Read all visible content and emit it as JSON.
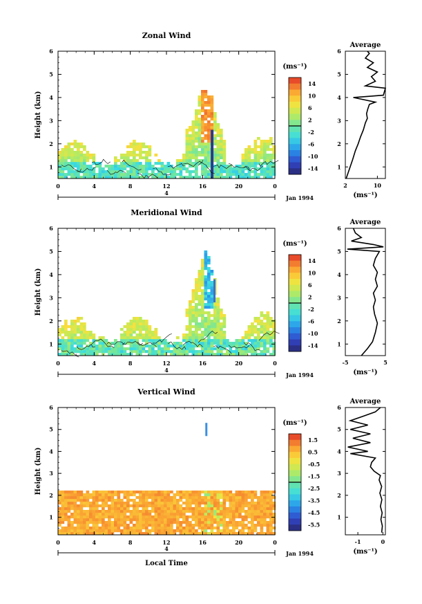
{
  "chart_data": [
    {
      "type": "heatmap",
      "title": "Zonal Wind",
      "ylabel": "Height (km)",
      "ylim": [
        0.5,
        6
      ],
      "yticks": [
        "1",
        "2",
        "3",
        "4",
        "5",
        "6"
      ],
      "xlim": [
        0,
        24
      ],
      "xticks": [
        "0",
        "4",
        "8",
        "12",
        "16",
        "20",
        "0"
      ],
      "day_label": "4",
      "date_label": "Jan 1994",
      "colorbar": {
        "unit": "(ms⁻¹)",
        "ticks": [
          "14",
          "10",
          "6",
          "2",
          "-2",
          "-6",
          "-10",
          "-14"
        ],
        "range": [
          -16,
          16
        ]
      },
      "average": {
        "title": "Average",
        "xlabel": "(ms⁻¹)",
        "xticks": [
          "2",
          "10"
        ],
        "xlim": [
          2,
          12
        ],
        "ylim": [
          0.5,
          6
        ],
        "yticks": [
          "1",
          "2",
          "3",
          "4",
          "5",
          "6"
        ],
        "profile": [
          [
            2.2,
            0.5
          ],
          [
            3.0,
            0.9
          ],
          [
            3.8,
            1.3
          ],
          [
            4.5,
            1.7
          ],
          [
            5.2,
            2.0
          ],
          [
            5.8,
            2.3
          ],
          [
            6.5,
            2.6
          ],
          [
            7.0,
            2.9
          ],
          [
            7.5,
            3.1
          ],
          [
            7.3,
            3.3
          ],
          [
            7.6,
            3.5
          ],
          [
            8.0,
            3.7
          ],
          [
            9.5,
            3.8
          ],
          [
            4.0,
            4.0
          ],
          [
            8.0,
            4.05
          ],
          [
            11.5,
            4.1
          ],
          [
            12.0,
            4.4
          ],
          [
            7.0,
            4.5
          ],
          [
            9.5,
            4.7
          ],
          [
            8.5,
            4.9
          ],
          [
            10.0,
            5.1
          ],
          [
            7.5,
            5.3
          ],
          [
            9.0,
            5.5
          ],
          [
            7.0,
            5.7
          ],
          [
            8.0,
            5.9
          ],
          [
            7.5,
            6.0
          ]
        ]
      }
    },
    {
      "type": "heatmap",
      "title": "Meridional Wind",
      "ylabel": "Height (km)",
      "ylim": [
        0.5,
        6
      ],
      "yticks": [
        "1",
        "2",
        "3",
        "4",
        "5",
        "6"
      ],
      "xlim": [
        0,
        24
      ],
      "xticks": [
        "0",
        "4",
        "8",
        "12",
        "16",
        "20",
        "0"
      ],
      "day_label": "4",
      "date_label": "Jan 1994",
      "colorbar": {
        "unit": "(ms⁻¹)",
        "ticks": [
          "14",
          "10",
          "6",
          "2",
          "-2",
          "-6",
          "-10",
          "-14"
        ],
        "range": [
          -16,
          16
        ]
      },
      "average": {
        "title": "Average",
        "xlabel": "(ms⁻¹)",
        "xticks": [
          "-5",
          "5"
        ],
        "xlim": [
          -5,
          5
        ],
        "ylim": [
          0.5,
          6
        ],
        "yticks": [
          "1",
          "2",
          "3",
          "4",
          "5",
          "6"
        ],
        "profile": [
          [
            -1.0,
            0.5
          ],
          [
            0.5,
            0.8
          ],
          [
            1.8,
            1.1
          ],
          [
            2.5,
            1.5
          ],
          [
            3.0,
            1.9
          ],
          [
            2.3,
            2.3
          ],
          [
            2.0,
            2.6
          ],
          [
            2.5,
            2.9
          ],
          [
            2.0,
            3.2
          ],
          [
            3.0,
            3.5
          ],
          [
            2.5,
            3.8
          ],
          [
            3.0,
            4.1
          ],
          [
            2.0,
            4.4
          ],
          [
            2.5,
            4.7
          ],
          [
            3.5,
            5.0
          ],
          [
            -4.5,
            5.1
          ],
          [
            4.5,
            5.2
          ],
          [
            2.0,
            5.3
          ],
          [
            -3.5,
            5.45
          ],
          [
            -1.0,
            5.6
          ],
          [
            -2.5,
            5.8
          ],
          [
            -3.0,
            6.0
          ]
        ]
      }
    },
    {
      "type": "heatmap",
      "title": "Vertical Wind",
      "ylabel": "Height (km)",
      "xlabel": "Local Time",
      "ylim": [
        0.2,
        6
      ],
      "yticks": [
        "1",
        "2",
        "3",
        "4",
        "5",
        "6"
      ],
      "xlim": [
        0,
        24
      ],
      "xticks": [
        "0",
        "4",
        "8",
        "12",
        "16",
        "20",
        "0"
      ],
      "day_label": "4",
      "date_label": "Jan 1994",
      "colorbar": {
        "unit": "(ms⁻¹)",
        "ticks": [
          "1.5",
          "0.5",
          "-0.5",
          "-1.5",
          "-2.5",
          "-3.5",
          "-4.5",
          "-5.5"
        ],
        "range": [
          -6,
          2
        ]
      },
      "average": {
        "title": "Average",
        "xlabel": "(ms⁻¹)",
        "xticks": [
          "-1",
          "0"
        ],
        "xlim": [
          -1.5,
          0.1
        ],
        "ylim": [
          0.2,
          6
        ],
        "yticks": [
          "1",
          "2",
          "3",
          "4",
          "5",
          "6"
        ],
        "profile": [
          [
            -0.05,
            0.3
          ],
          [
            -0.02,
            0.6
          ],
          [
            -0.08,
            0.9
          ],
          [
            -0.03,
            1.2
          ],
          [
            -0.1,
            1.5
          ],
          [
            -0.04,
            1.8
          ],
          [
            -0.12,
            2.1
          ],
          [
            -0.05,
            2.4
          ],
          [
            -0.15,
            2.7
          ],
          [
            -0.1,
            2.9
          ],
          [
            -0.35,
            3.1
          ],
          [
            -0.5,
            3.3
          ],
          [
            -0.45,
            3.5
          ],
          [
            -0.3,
            3.7
          ],
          [
            -1.3,
            3.9
          ],
          [
            -0.6,
            4.0
          ],
          [
            -1.4,
            4.2
          ],
          [
            -0.5,
            4.4
          ],
          [
            -1.2,
            4.6
          ],
          [
            -0.5,
            4.8
          ],
          [
            -1.3,
            5.0
          ],
          [
            -0.6,
            5.2
          ],
          [
            -1.3,
            5.4
          ],
          [
            -0.8,
            5.6
          ],
          [
            -0.3,
            5.8
          ],
          [
            -0.1,
            6.0
          ]
        ]
      }
    }
  ]
}
